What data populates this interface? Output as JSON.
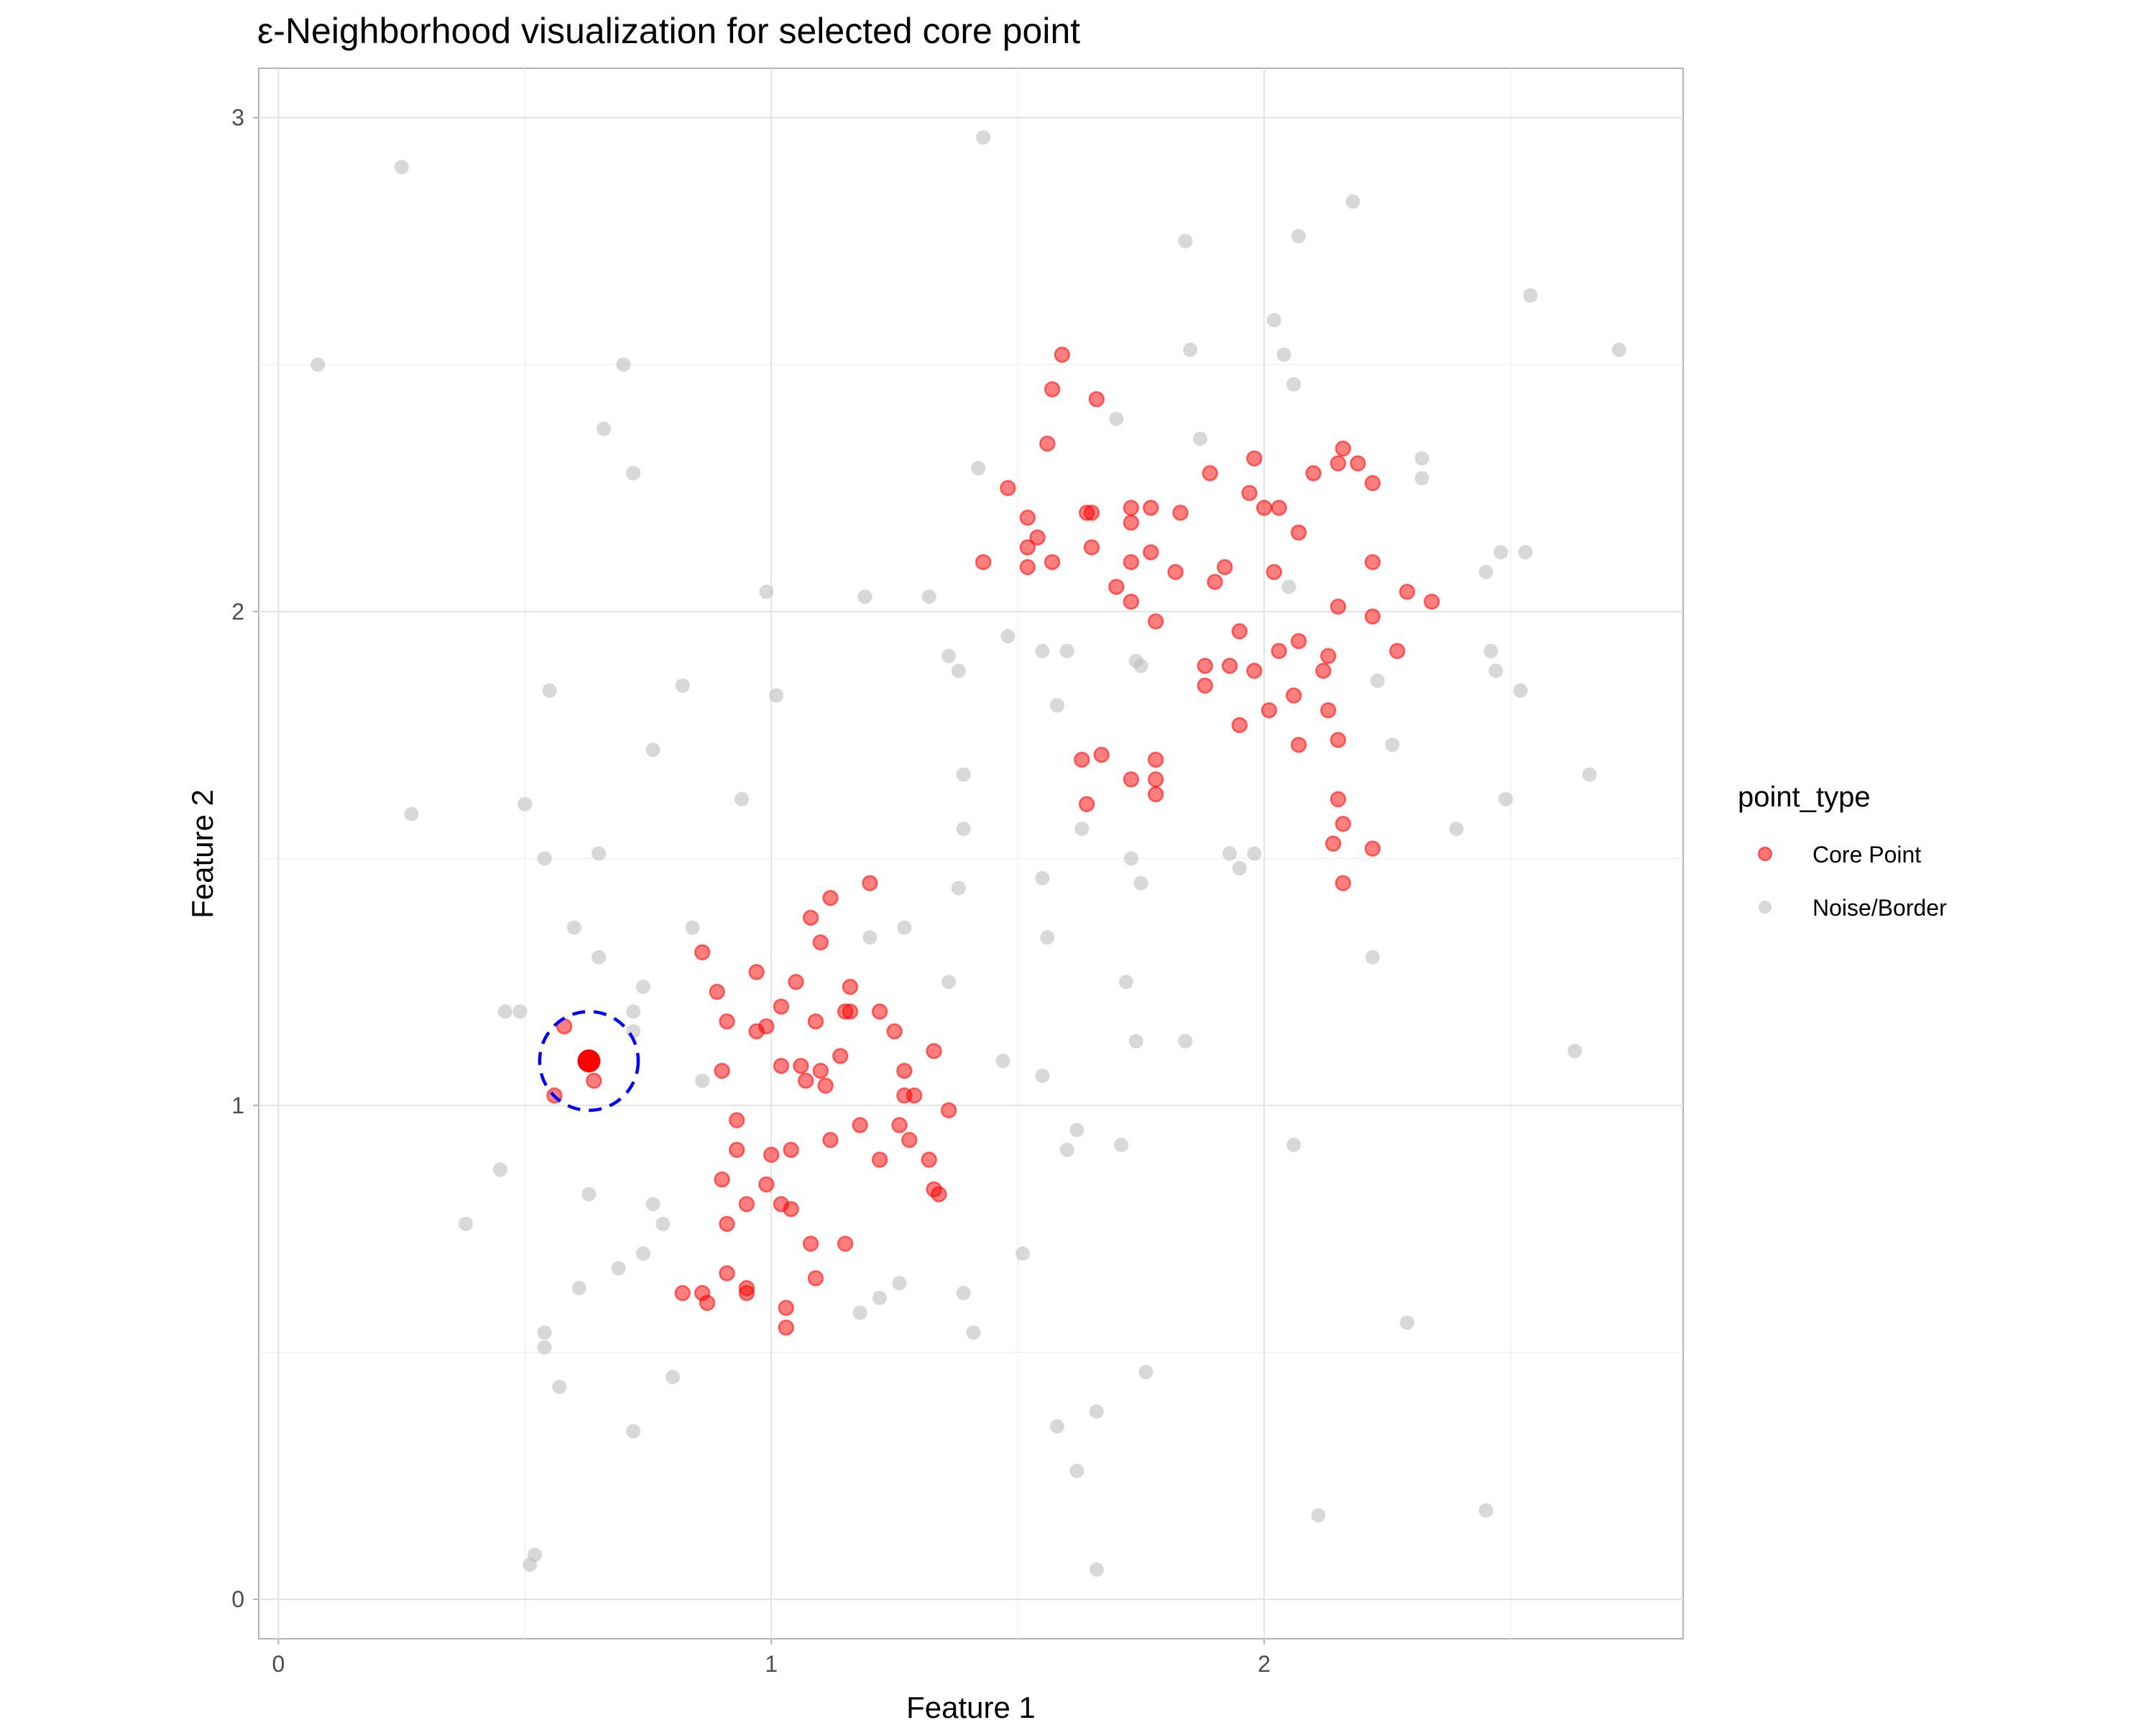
{
  "chart_data": {
    "type": "scatter",
    "title": "ε-Neighborhood visualization for selected core point",
    "xlabel": "Feature 1",
    "ylabel": "Feature 2",
    "xlim": [
      -0.04,
      2.85
    ],
    "ylim": [
      -0.08,
      3.1
    ],
    "xticks": [
      0,
      1,
      2
    ],
    "yticks": [
      0,
      1,
      2,
      3
    ],
    "grid": true,
    "legend": {
      "title": "point_type",
      "position": "right",
      "entries": [
        {
          "label": "Core Point",
          "color": "#ff0000"
        },
        {
          "label": "Noise/Border",
          "color": "#bebebe"
        }
      ]
    },
    "series": [
      {
        "name": "Core Point",
        "color": "#ff0000",
        "points": [
          [
            0.58,
            1.16
          ],
          [
            0.56,
            1.02
          ],
          [
            0.64,
            1.05
          ],
          [
            0.86,
            1.31
          ],
          [
            0.89,
            1.23
          ],
          [
            0.91,
            1.17
          ],
          [
            0.9,
            1.07
          ],
          [
            0.97,
            1.15
          ],
          [
            0.99,
            1.16
          ],
          [
            0.97,
            1.27
          ],
          [
            1.02,
            1.2
          ],
          [
            1.05,
            1.25
          ],
          [
            1.08,
            1.38
          ],
          [
            1.1,
            1.33
          ],
          [
            1.12,
            1.42
          ],
          [
            1.16,
            1.24
          ],
          [
            1.2,
            1.45
          ],
          [
            1.09,
            1.17
          ],
          [
            1.15,
            1.19
          ],
          [
            1.16,
            1.19
          ],
          [
            1.22,
            1.19
          ],
          [
            1.25,
            1.15
          ],
          [
            1.33,
            1.11
          ],
          [
            1.14,
            1.1
          ],
          [
            1.27,
            1.07
          ],
          [
            1.1,
            1.07
          ],
          [
            1.06,
            1.08
          ],
          [
            1.02,
            1.08
          ],
          [
            1.07,
            1.05
          ],
          [
            1.11,
            1.04
          ],
          [
            1.27,
            1.02
          ],
          [
            1.29,
            1.02
          ],
          [
            1.36,
            0.99
          ],
          [
            0.93,
            0.97
          ],
          [
            1.18,
            0.96
          ],
          [
            1.26,
            0.96
          ],
          [
            1.12,
            0.93
          ],
          [
            1.28,
            0.93
          ],
          [
            0.93,
            0.91
          ],
          [
            1.04,
            0.91
          ],
          [
            1.0,
            0.9
          ],
          [
            1.22,
            0.89
          ],
          [
            1.32,
            0.89
          ],
          [
            0.9,
            0.85
          ],
          [
            0.99,
            0.84
          ],
          [
            1.33,
            0.83
          ],
          [
            1.34,
            0.82
          ],
          [
            0.95,
            0.8
          ],
          [
            1.02,
            0.8
          ],
          [
            1.04,
            0.79
          ],
          [
            0.91,
            0.76
          ],
          [
            1.08,
            0.72
          ],
          [
            1.15,
            0.72
          ],
          [
            0.91,
            0.66
          ],
          [
            1.09,
            0.65
          ],
          [
            0.95,
            0.63
          ],
          [
            0.82,
            0.62
          ],
          [
            0.86,
            0.62
          ],
          [
            0.95,
            0.62
          ],
          [
            0.87,
            0.6
          ],
          [
            1.03,
            0.59
          ],
          [
            1.03,
            0.55
          ],
          [
            1.59,
            2.52
          ],
          [
            1.57,
            2.45
          ],
          [
            1.66,
            2.43
          ],
          [
            1.56,
            2.34
          ],
          [
            1.48,
            2.25
          ],
          [
            1.52,
            2.19
          ],
          [
            1.54,
            2.15
          ],
          [
            1.52,
            2.13
          ],
          [
            1.43,
            2.1
          ],
          [
            1.52,
            2.09
          ],
          [
            1.57,
            2.1
          ],
          [
            1.64,
            2.2
          ],
          [
            1.65,
            2.2
          ],
          [
            1.73,
            2.18
          ],
          [
            1.73,
            2.21
          ],
          [
            1.77,
            2.21
          ],
          [
            1.77,
            2.12
          ],
          [
            1.73,
            2.1
          ],
          [
            1.65,
            2.13
          ],
          [
            1.7,
            2.05
          ],
          [
            1.73,
            2.02
          ],
          [
            1.82,
            2.08
          ],
          [
            1.83,
            2.2
          ],
          [
            1.78,
            1.98
          ],
          [
            1.89,
            2.28
          ],
          [
            1.92,
            2.09
          ],
          [
            1.9,
            2.06
          ],
          [
            1.97,
            2.24
          ],
          [
            1.98,
            2.31
          ],
          [
            2.0,
            2.21
          ],
          [
            2.03,
            2.21
          ],
          [
            2.07,
            2.16
          ],
          [
            2.1,
            2.28
          ],
          [
            2.15,
            2.3
          ],
          [
            2.16,
            2.33
          ],
          [
            2.19,
            2.3
          ],
          [
            2.22,
            2.26
          ],
          [
            2.02,
            2.08
          ],
          [
            2.15,
            2.01
          ],
          [
            2.22,
            1.99
          ],
          [
            2.22,
            2.1
          ],
          [
            2.29,
            2.04
          ],
          [
            2.34,
            2.02
          ],
          [
            2.27,
            1.92
          ],
          [
            2.13,
            1.91
          ],
          [
            2.03,
            1.92
          ],
          [
            2.07,
            1.94
          ],
          [
            1.95,
            1.96
          ],
          [
            1.93,
            1.89
          ],
          [
            1.88,
            1.89
          ],
          [
            1.88,
            1.85
          ],
          [
            1.98,
            1.88
          ],
          [
            2.12,
            1.88
          ],
          [
            2.06,
            1.83
          ],
          [
            2.01,
            1.8
          ],
          [
            2.13,
            1.8
          ],
          [
            1.95,
            1.77
          ],
          [
            2.07,
            1.73
          ],
          [
            2.15,
            1.74
          ],
          [
            1.67,
            1.71
          ],
          [
            1.63,
            1.7
          ],
          [
            1.78,
            1.7
          ],
          [
            1.78,
            1.66
          ],
          [
            1.73,
            1.66
          ],
          [
            1.64,
            1.61
          ],
          [
            1.78,
            1.63
          ],
          [
            2.15,
            1.62
          ],
          [
            2.16,
            1.57
          ],
          [
            2.14,
            1.53
          ],
          [
            2.22,
            1.52
          ],
          [
            2.16,
            1.45
          ]
        ]
      },
      {
        "name": "Noise/Border",
        "color": "#bebebe",
        "points": [
          [
            0.25,
            2.9
          ],
          [
            1.43,
            2.96
          ],
          [
            0.08,
            2.5
          ],
          [
            0.7,
            2.5
          ],
          [
            0.66,
            2.37
          ],
          [
            0.72,
            2.28
          ],
          [
            0.55,
            1.84
          ],
          [
            0.82,
            1.85
          ],
          [
            0.76,
            1.72
          ],
          [
            0.27,
            1.59
          ],
          [
            0.5,
            1.61
          ],
          [
            0.94,
            1.62
          ],
          [
            0.54,
            1.5
          ],
          [
            0.65,
            1.51
          ],
          [
            0.6,
            1.36
          ],
          [
            0.65,
            1.3
          ],
          [
            0.84,
            1.36
          ],
          [
            0.74,
            1.24
          ],
          [
            0.72,
            1.19
          ],
          [
            0.72,
            1.15
          ],
          [
            0.49,
            1.19
          ],
          [
            0.46,
            1.19
          ],
          [
            0.86,
            1.05
          ],
          [
            0.99,
            2.04
          ],
          [
            1.01,
            1.83
          ],
          [
            1.19,
            2.03
          ],
          [
            1.32,
            2.03
          ],
          [
            1.36,
            1.91
          ],
          [
            1.38,
            1.88
          ],
          [
            1.48,
            1.95
          ],
          [
            1.55,
            1.92
          ],
          [
            1.6,
            1.92
          ],
          [
            1.58,
            1.81
          ],
          [
            1.42,
            2.29
          ],
          [
            1.7,
            2.39
          ],
          [
            1.39,
            1.67
          ],
          [
            1.39,
            1.56
          ],
          [
            1.38,
            1.44
          ],
          [
            1.36,
            1.25
          ],
          [
            1.27,
            1.36
          ],
          [
            1.2,
            1.34
          ],
          [
            1.55,
            1.46
          ],
          [
            1.56,
            1.34
          ],
          [
            1.63,
            1.56
          ],
          [
            1.73,
            1.5
          ],
          [
            1.75,
            1.45
          ],
          [
            1.72,
            1.25
          ],
          [
            1.74,
            1.13
          ],
          [
            1.84,
            1.13
          ],
          [
            1.74,
            1.9
          ],
          [
            1.75,
            1.89
          ],
          [
            1.84,
            2.75
          ],
          [
            1.85,
            2.53
          ],
          [
            1.87,
            2.35
          ],
          [
            2.07,
            2.76
          ],
          [
            2.18,
            2.83
          ],
          [
            2.02,
            2.59
          ],
          [
            2.04,
            2.52
          ],
          [
            2.06,
            2.46
          ],
          [
            2.05,
            2.05
          ],
          [
            1.93,
            1.51
          ],
          [
            1.95,
            1.48
          ],
          [
            1.98,
            1.51
          ],
          [
            2.23,
            1.86
          ],
          [
            2.26,
            1.73
          ],
          [
            2.32,
            2.31
          ],
          [
            2.32,
            2.27
          ],
          [
            2.45,
            2.08
          ],
          [
            2.48,
            2.12
          ],
          [
            2.53,
            2.12
          ],
          [
            2.46,
            1.92
          ],
          [
            2.47,
            1.88
          ],
          [
            2.52,
            1.84
          ],
          [
            2.49,
            1.62
          ],
          [
            2.39,
            1.56
          ],
          [
            2.66,
            1.67
          ],
          [
            2.54,
            2.64
          ],
          [
            2.72,
            2.53
          ],
          [
            2.22,
            1.3
          ],
          [
            2.63,
            1.11
          ],
          [
            1.47,
            1.09
          ],
          [
            1.55,
            1.06
          ],
          [
            1.62,
            0.95
          ],
          [
            1.6,
            0.91
          ],
          [
            1.71,
            0.92
          ],
          [
            2.06,
            0.92
          ],
          [
            1.51,
            0.7
          ],
          [
            2.29,
            0.56
          ],
          [
            1.76,
            0.46
          ],
          [
            1.66,
            0.38
          ],
          [
            1.58,
            0.35
          ],
          [
            1.62,
            0.26
          ],
          [
            1.66,
            0.06
          ],
          [
            2.11,
            0.17
          ],
          [
            2.45,
            0.18
          ],
          [
            0.45,
            0.87
          ],
          [
            0.63,
            0.82
          ],
          [
            0.38,
            0.76
          ],
          [
            0.76,
            0.8
          ],
          [
            0.78,
            0.76
          ],
          [
            0.74,
            0.7
          ],
          [
            0.69,
            0.67
          ],
          [
            0.61,
            0.63
          ],
          [
            0.54,
            0.54
          ],
          [
            0.54,
            0.51
          ],
          [
            0.8,
            0.45
          ],
          [
            0.57,
            0.43
          ],
          [
            0.72,
            0.34
          ],
          [
            0.52,
            0.09
          ],
          [
            0.51,
            0.07
          ],
          [
            1.18,
            0.58
          ],
          [
            1.22,
            0.61
          ],
          [
            1.26,
            0.64
          ],
          [
            1.39,
            0.62
          ],
          [
            1.41,
            0.54
          ]
        ]
      }
    ],
    "highlight": {
      "center": [
        0.63,
        1.09
      ],
      "epsilon": 0.1,
      "circle_color": "#0000ff",
      "point_color": "#ff0000"
    }
  }
}
